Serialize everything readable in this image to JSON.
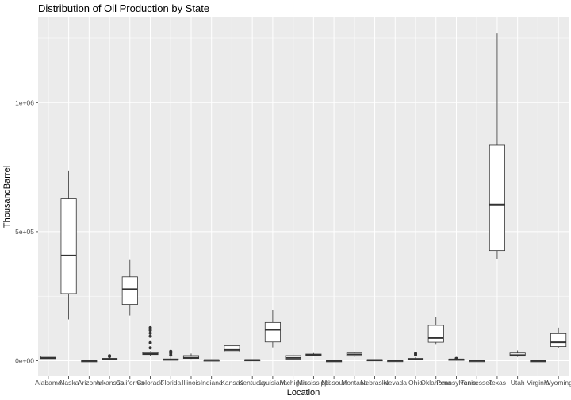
{
  "chart_data": {
    "type": "boxplot",
    "title": "Distribution of Oil Production by State",
    "xlabel": "Location",
    "ylabel": "ThousandBarrel",
    "ylim": [
      -60000,
      1330000
    ],
    "yticks": [
      {
        "value": 0,
        "label": "0e+00"
      },
      {
        "value": 500000,
        "label": "5e+05"
      },
      {
        "value": 1000000,
        "label": "1e+06"
      }
    ],
    "grid": true,
    "boxes": [
      {
        "name": "Alabama",
        "min": 8000,
        "q1": 8000,
        "median": 12000,
        "q3": 18000,
        "max": 18000,
        "outliers": []
      },
      {
        "name": "Alaska",
        "min": 160000,
        "q1": 260000,
        "median": 408000,
        "q3": 627000,
        "max": 737000,
        "outliers": []
      },
      {
        "name": "Arizona",
        "min": 0,
        "q1": 0,
        "median": 100,
        "q3": 200,
        "max": 200,
        "outliers": []
      },
      {
        "name": "Arkansas",
        "min": 5000,
        "q1": 6000,
        "median": 7000,
        "q3": 9000,
        "max": 11000,
        "outliers": [
          17000,
          19000
        ]
      },
      {
        "name": "California",
        "min": 175000,
        "q1": 218000,
        "median": 277000,
        "q3": 325000,
        "max": 393000,
        "outliers": []
      },
      {
        "name": "Colorado",
        "min": 20000,
        "q1": 24000,
        "median": 27000,
        "q3": 32000,
        "max": 37000,
        "outliers": [
          50000,
          70000,
          95000,
          107000,
          118000,
          128000
        ]
      },
      {
        "name": "Florida",
        "min": 1000,
        "q1": 2000,
        "median": 4000,
        "q3": 7000,
        "max": 14000,
        "outliers": [
          22000,
          30000,
          36000
        ]
      },
      {
        "name": "Illinois",
        "min": 7000,
        "q1": 9000,
        "median": 12000,
        "q3": 20000,
        "max": 28000,
        "outliers": []
      },
      {
        "name": "Indiana",
        "min": 1000,
        "q1": 2000,
        "median": 2500,
        "q3": 3000,
        "max": 5000,
        "outliers": []
      },
      {
        "name": "Kansas",
        "min": 30000,
        "q1": 35000,
        "median": 42000,
        "q3": 58000,
        "max": 72000,
        "outliers": []
      },
      {
        "name": "Kentucky",
        "min": 2000,
        "q1": 2500,
        "median": 3000,
        "q3": 4000,
        "max": 5000,
        "outliers": []
      },
      {
        "name": "Louisiana",
        "min": 52000,
        "q1": 73000,
        "median": 120000,
        "q3": 148000,
        "max": 198000,
        "outliers": []
      },
      {
        "name": "Michigan",
        "min": 5000,
        "q1": 6000,
        "median": 11000,
        "q3": 20000,
        "max": 30000,
        "outliers": []
      },
      {
        "name": "Mississippi",
        "min": 18000,
        "q1": 20000,
        "median": 23000,
        "q3": 26000,
        "max": 30000,
        "outliers": []
      },
      {
        "name": "Missouri",
        "min": 0,
        "q1": 0,
        "median": 100,
        "q3": 200,
        "max": 300,
        "outliers": []
      },
      {
        "name": "Montana",
        "min": 15000,
        "q1": 18000,
        "median": 24000,
        "q3": 30000,
        "max": 33000,
        "outliers": []
      },
      {
        "name": "Nebraska",
        "min": 2000,
        "q1": 2500,
        "median": 3000,
        "q3": 4000,
        "max": 5000,
        "outliers": []
      },
      {
        "name": "Nevada",
        "min": 300,
        "q1": 400,
        "median": 500,
        "q3": 700,
        "max": 800,
        "outliers": []
      },
      {
        "name": "Ohio",
        "min": 4000,
        "q1": 5000,
        "median": 6000,
        "q3": 9000,
        "max": 14000,
        "outliers": [
          23000,
          28000
        ]
      },
      {
        "name": "Oklahoma",
        "min": 62000,
        "q1": 72000,
        "median": 88000,
        "q3": 137000,
        "max": 168000,
        "outliers": []
      },
      {
        "name": "Pennsylvania",
        "min": 3000,
        "q1": 4000,
        "median": 5000,
        "q3": 6000,
        "max": 7000,
        "outliers": [
          8000,
          9000
        ]
      },
      {
        "name": "Tennessee",
        "min": 200,
        "q1": 300,
        "median": 400,
        "q3": 500,
        "max": 600,
        "outliers": []
      },
      {
        "name": "Texas",
        "min": 395000,
        "q1": 427000,
        "median": 605000,
        "q3": 835000,
        "max": 1268000,
        "outliers": []
      },
      {
        "name": "Utah",
        "min": 15000,
        "q1": 18000,
        "median": 22000,
        "q3": 30000,
        "max": 40000,
        "outliers": []
      },
      {
        "name": "Virginia",
        "min": 0,
        "q1": 0,
        "median": 100,
        "q3": 200,
        "max": 300,
        "outliers": []
      },
      {
        "name": "Wyoming",
        "min": 50000,
        "q1": 55000,
        "median": 72000,
        "q3": 105000,
        "max": 128000,
        "outliers": []
      }
    ],
    "colors": {
      "panel": "#ebebeb",
      "grid_major": "#ffffff",
      "box_fill": "#ffffff",
      "box_line": "#333333",
      "tick_text": "#4d4d4d"
    }
  }
}
